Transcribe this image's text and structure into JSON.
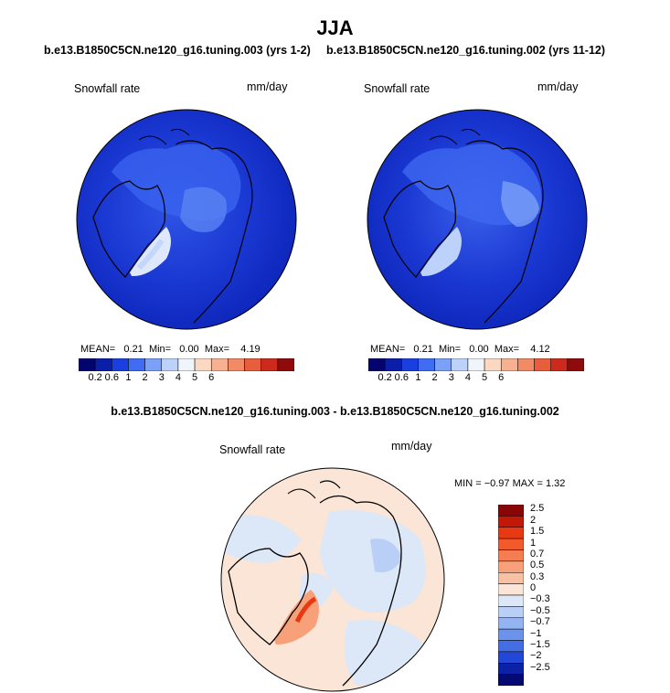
{
  "page_title": "JJA",
  "panels": [
    {
      "case_title": "b.e13.B1850C5CN.ne120_g16.tuning.003 (yrs 1-2)",
      "variable": "Snowfall rate",
      "units": "mm/day",
      "stats": {
        "mean_label": "MEAN=",
        "mean": "0.21",
        "min_label": "Min=",
        "min": "0.00",
        "max_label": "Max=",
        "max": "4.19"
      }
    },
    {
      "case_title": "b.e13.B1850C5CN.ne120_g16.tuning.002 (yrs 11-12)",
      "variable": "Snowfall rate",
      "units": "mm/day",
      "stats": {
        "mean_label": "MEAN=",
        "mean": "0.21",
        "min_label": "Min=",
        "min": "0.00",
        "max_label": "Max=",
        "max": "4.12"
      }
    }
  ],
  "difference": {
    "title": "b.e13.B1850C5CN.ne120_g16.tuning.003 - b.e13.B1850C5CN.ne120_g16.tuning.002",
    "variable": "Snowfall rate",
    "units": "mm/day",
    "stats_text": "MIN =  −0.97  MAX =   1.32"
  },
  "chart_data": [
    {
      "type": "heatmap",
      "projection": "north polar stereographic",
      "variable": "Snowfall rate",
      "units": "mm/day",
      "mean": 0.21,
      "min": 0.0,
      "max": 4.19,
      "levels": [
        "0.2",
        "0.6",
        "1",
        "2",
        "3",
        "4",
        "5",
        "6"
      ],
      "colors": [
        "#03046d",
        "#0a1ea8",
        "#1a3fe0",
        "#3f6cf2",
        "#7ba0f7",
        "#bcd2fa",
        "#f0f4fb",
        "#fbd8c2",
        "#f7b090",
        "#f28a66",
        "#e85d3c",
        "#cc2a1c",
        "#8f0a0a"
      ]
    },
    {
      "type": "heatmap",
      "projection": "north polar stereographic",
      "variable": "Snowfall rate",
      "units": "mm/day",
      "mean": 0.21,
      "min": 0.0,
      "max": 4.12,
      "levels": [
        "0.2",
        "0.6",
        "1",
        "2",
        "3",
        "4",
        "5",
        "6"
      ],
      "colors": [
        "#03046d",
        "#0a1ea8",
        "#1a3fe0",
        "#3f6cf2",
        "#7ba0f7",
        "#bcd2fa",
        "#f0f4fb",
        "#fbd8c2",
        "#f7b090",
        "#f28a66",
        "#e85d3c",
        "#cc2a1c",
        "#8f0a0a"
      ]
    },
    {
      "type": "heatmap",
      "projection": "north polar stereographic",
      "variable": "Snowfall rate",
      "units": "mm/day",
      "min": -0.97,
      "max": 1.32,
      "levels": [
        "2.5",
        "2",
        "1.5",
        "1",
        "0.7",
        "0.5",
        "0.3",
        "0",
        "−0.3",
        "−0.5",
        "−0.7",
        "−1",
        "−1.5",
        "−2",
        "−2.5"
      ],
      "colors": [
        "#8a0606",
        "#c21807",
        "#e83a12",
        "#f25a2c",
        "#f57d52",
        "#f7a07a",
        "#f8c1a4",
        "#fbe5d6",
        "#dce7f7",
        "#b9cff5",
        "#93b3f1",
        "#6b93ec",
        "#456ee5",
        "#2347d6",
        "#0b22a6",
        "#050a73"
      ]
    }
  ]
}
